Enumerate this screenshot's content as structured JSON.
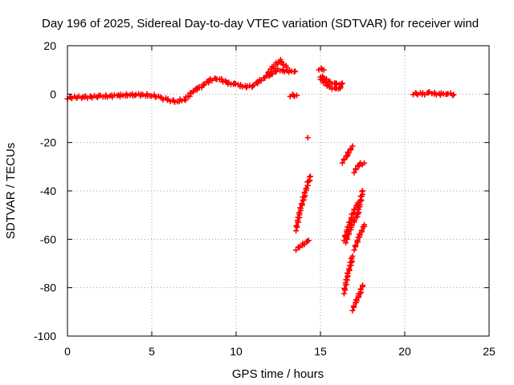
{
  "chart_data": {
    "type": "scatter",
    "title": "Day 196 of 2025, Sidereal Day-to-day VTEC variation (SDTVAR) for receiver wind",
    "xlabel": "GPS time / hours",
    "ylabel": "SDTVAR / TECUs",
    "xlim": [
      0,
      25
    ],
    "ylim": [
      -100,
      20
    ],
    "x_ticks": [
      0,
      5,
      10,
      15,
      20,
      25
    ],
    "y_ticks": [
      -100,
      -80,
      -60,
      -40,
      -20,
      0,
      20
    ],
    "grid": true,
    "marker": "plus",
    "marker_color": "#ff0000",
    "series": [
      {
        "segments": [
          [
            [
              0.0,
              -1.5
            ],
            [
              1.0,
              -1.2
            ],
            [
              2.0,
              -1.0
            ],
            [
              3.0,
              -0.6
            ],
            [
              4.0,
              -0.2
            ],
            [
              5.0,
              -0.5
            ],
            [
              5.5,
              -1.5
            ],
            [
              6.0,
              -2.5
            ],
            [
              6.5,
              -3.0
            ],
            [
              7.0,
              -2.0
            ],
            [
              7.5,
              1.5
            ],
            [
              8.0,
              3.5
            ],
            [
              8.5,
              6.0
            ],
            [
              9.0,
              6.5
            ],
            [
              9.5,
              4.5
            ],
            [
              10.0,
              4.0
            ],
            [
              10.5,
              3.0
            ],
            [
              11.0,
              3.5
            ],
            [
              11.5,
              6.0
            ],
            [
              12.0,
              8.0
            ],
            [
              12.5,
              10.0
            ],
            [
              13.0,
              9.5
            ],
            [
              13.5,
              9.5
            ]
          ],
          [
            [
              11.8,
              8.0
            ],
            [
              12.1,
              10.5
            ],
            [
              12.4,
              12.5
            ],
            [
              12.6,
              14.0
            ],
            [
              12.8,
              12.5
            ],
            [
              13.0,
              11.0
            ]
          ],
          [
            [
              13.2,
              -0.5
            ],
            [
              13.6,
              -0.5
            ]
          ],
          [
            [
              14.9,
              10.5
            ],
            [
              15.2,
              10.0
            ]
          ],
          [
            [
              15.0,
              7.5
            ],
            [
              15.5,
              5.0
            ],
            [
              16.0,
              4.0
            ],
            [
              16.3,
              4.5
            ]
          ],
          [
            [
              15.0,
              6.5
            ],
            [
              15.5,
              3.0
            ],
            [
              16.0,
              2.0
            ],
            [
              16.2,
              3.0
            ]
          ],
          [
            [
              14.25,
              -18.0
            ]
          ],
          [
            [
              13.55,
              -56.0
            ],
            [
              13.8,
              -48.0
            ],
            [
              14.0,
              -43.0
            ],
            [
              14.2,
              -38.0
            ],
            [
              14.4,
              -34.0
            ]
          ],
          [
            [
              13.55,
              -64.0
            ],
            [
              13.9,
              -62.5
            ],
            [
              14.3,
              -60.5
            ]
          ],
          [
            [
              16.3,
              -28.0
            ],
            [
              16.6,
              -25.0
            ],
            [
              16.9,
              -21.5
            ]
          ],
          [
            [
              17.0,
              -32.0
            ],
            [
              17.3,
              -29.0
            ],
            [
              17.6,
              -28.5
            ]
          ],
          [
            [
              16.4,
              -60.0
            ],
            [
              16.7,
              -54.0
            ],
            [
              16.9,
              -50.0
            ],
            [
              17.2,
              -45.0
            ]
          ],
          [
            [
              16.5,
              -61.0
            ],
            [
              16.8,
              -55.0
            ],
            [
              17.2,
              -50.0
            ],
            [
              17.5,
              -40.0
            ]
          ],
          [
            [
              17.0,
              -64.0
            ],
            [
              17.3,
              -59.0
            ],
            [
              17.6,
              -54.0
            ]
          ],
          [
            [
              16.4,
              -82.0
            ],
            [
              16.6,
              -75.0
            ],
            [
              16.8,
              -70.0
            ],
            [
              16.9,
              -67.0
            ]
          ],
          [
            [
              16.9,
              -89.0
            ],
            [
              17.1,
              -86.0
            ],
            [
              17.3,
              -83.0
            ],
            [
              17.5,
              -79.0
            ]
          ],
          [
            [
              20.5,
              0.3
            ],
            [
              21.0,
              0.0
            ],
            [
              21.5,
              0.5
            ],
            [
              22.0,
              0.0
            ],
            [
              22.5,
              0.3
            ],
            [
              22.9,
              -0.2
            ]
          ]
        ]
      }
    ]
  }
}
